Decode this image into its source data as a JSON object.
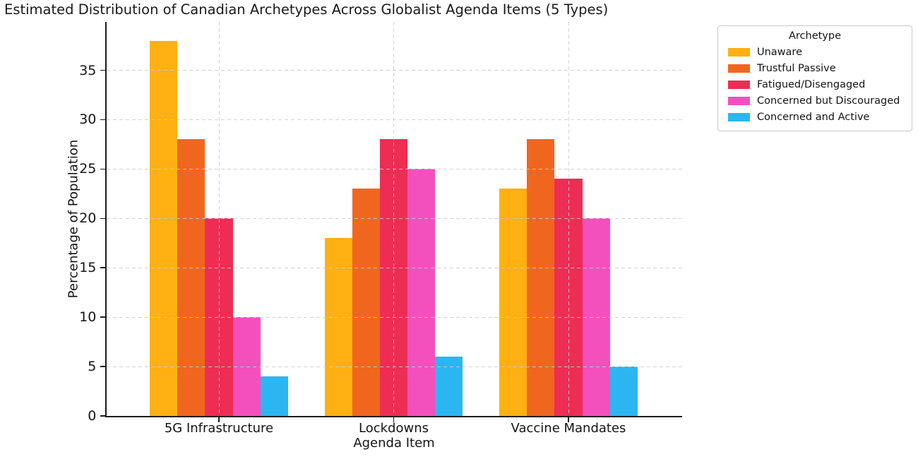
{
  "chart_data": {
    "type": "bar",
    "title": "Estimated Distribution of Canadian Archetypes Across Globalist Agenda Items (5 Types)",
    "xlabel": "Agenda Item",
    "ylabel": "Percentage of Population",
    "categories": [
      "5G Infrastructure",
      "Lockdowns",
      "Vaccine Mandates"
    ],
    "series": [
      {
        "name": "Unaware",
        "color": "#FFB012",
        "values": [
          38,
          18,
          23
        ]
      },
      {
        "name": "Trustful Passive",
        "color": "#F1661F",
        "values": [
          28,
          23,
          28
        ]
      },
      {
        "name": "Fatigued/Disengaged",
        "color": "#EE2D55",
        "values": [
          20,
          28,
          24
        ]
      },
      {
        "name": "Concerned but Discouraged",
        "color": "#F350BE",
        "values": [
          10,
          25,
          20
        ]
      },
      {
        "name": "Concerned and Active",
        "color": "#2CB6F1",
        "values": [
          4,
          6,
          5
        ]
      }
    ],
    "legend_title": "Archetype",
    "yticks": [
      0,
      5,
      10,
      15,
      20,
      25,
      30,
      35
    ],
    "ylim": [
      0,
      39.9
    ],
    "grid": true,
    "grid_style": "dashed",
    "grid_color": "#cbcbcb",
    "background": "#ffffff",
    "legend_position": "upper right, outside axes"
  }
}
